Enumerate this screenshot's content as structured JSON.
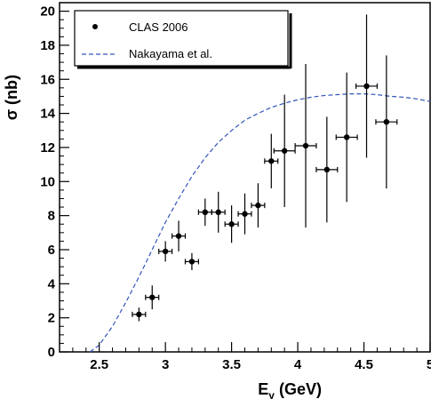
{
  "chart_data": {
    "type": "scatter",
    "xlabel_main": "E",
    "xlabel_sub": "γ",
    "xlabel_rest": " (GeV)",
    "ylabel": "σ (nb)",
    "xlim": [
      2.2,
      5.0
    ],
    "ylim": [
      0,
      20.5
    ],
    "x_ticks": [
      {
        "value": 2.5,
        "label": "2.5"
      },
      {
        "value": 3.0,
        "label": "3"
      },
      {
        "value": 3.5,
        "label": "3.5"
      },
      {
        "value": 4.0,
        "label": "4"
      },
      {
        "value": 4.5,
        "label": "4.5"
      },
      {
        "value": 5.0,
        "label": "5"
      }
    ],
    "y_ticks": [
      {
        "value": 0,
        "label": "0"
      },
      {
        "value": 2,
        "label": "2"
      },
      {
        "value": 4,
        "label": "4"
      },
      {
        "value": 6,
        "label": "6"
      },
      {
        "value": 8,
        "label": "8"
      },
      {
        "value": 10,
        "label": "10"
      },
      {
        "value": 12,
        "label": "12"
      },
      {
        "value": 14,
        "label": "14"
      },
      {
        "value": 16,
        "label": "16"
      },
      {
        "value": 18,
        "label": "18"
      },
      {
        "value": 20,
        "label": "20"
      }
    ],
    "legend": {
      "placement": "top-left",
      "entries": [
        {
          "label": "CLAS 2006",
          "style": "marker"
        },
        {
          "label": "Nakayama et al.",
          "style": "dashed"
        }
      ]
    },
    "series": [
      {
        "name": "CLAS 2006",
        "kind": "points",
        "color": "#000000",
        "x": [
          2.8,
          2.9,
          3.0,
          3.1,
          3.2,
          3.3,
          3.4,
          3.5,
          3.6,
          3.7,
          3.8,
          3.9,
          4.06,
          4.22,
          4.37,
          4.52,
          4.67
        ],
        "y": [
          2.2,
          3.2,
          5.9,
          6.8,
          5.3,
          8.2,
          8.2,
          7.5,
          8.1,
          8.6,
          11.2,
          11.8,
          12.1,
          10.7,
          12.6,
          15.6,
          13.5
        ],
        "xerr": [
          0.05,
          0.05,
          0.05,
          0.05,
          0.05,
          0.05,
          0.05,
          0.05,
          0.05,
          0.05,
          0.05,
          0.08,
          0.08,
          0.08,
          0.08,
          0.08,
          0.08
        ],
        "yerr_low": [
          0.4,
          0.7,
          0.6,
          0.9,
          0.5,
          0.8,
          1.2,
          1.1,
          1.2,
          1.3,
          1.6,
          3.3,
          4.8,
          3.1,
          3.8,
          4.2,
          3.9
        ],
        "yerr_high": [
          0.4,
          0.7,
          0.6,
          0.9,
          0.5,
          0.8,
          1.2,
          1.1,
          1.2,
          1.3,
          1.6,
          3.3,
          4.8,
          3.1,
          3.8,
          4.2,
          3.9
        ]
      },
      {
        "name": "Nakayama et al.",
        "kind": "dashed-line",
        "color": "#3355bb",
        "x": [
          2.43,
          2.5,
          2.6,
          2.7,
          2.8,
          2.9,
          3.0,
          3.1,
          3.2,
          3.3,
          3.4,
          3.5,
          3.6,
          3.7,
          3.8,
          3.9,
          4.0,
          4.1,
          4.2,
          4.3,
          4.4,
          4.5,
          4.6,
          4.7,
          4.8,
          4.9,
          5.0
        ],
        "y": [
          0.0,
          0.4,
          1.5,
          2.9,
          4.4,
          6.0,
          7.6,
          9.0,
          10.3,
          11.4,
          12.3,
          13.0,
          13.6,
          14.0,
          14.35,
          14.6,
          14.8,
          14.95,
          15.05,
          15.1,
          15.15,
          15.15,
          15.1,
          15.0,
          14.95,
          14.85,
          14.7
        ]
      }
    ]
  }
}
